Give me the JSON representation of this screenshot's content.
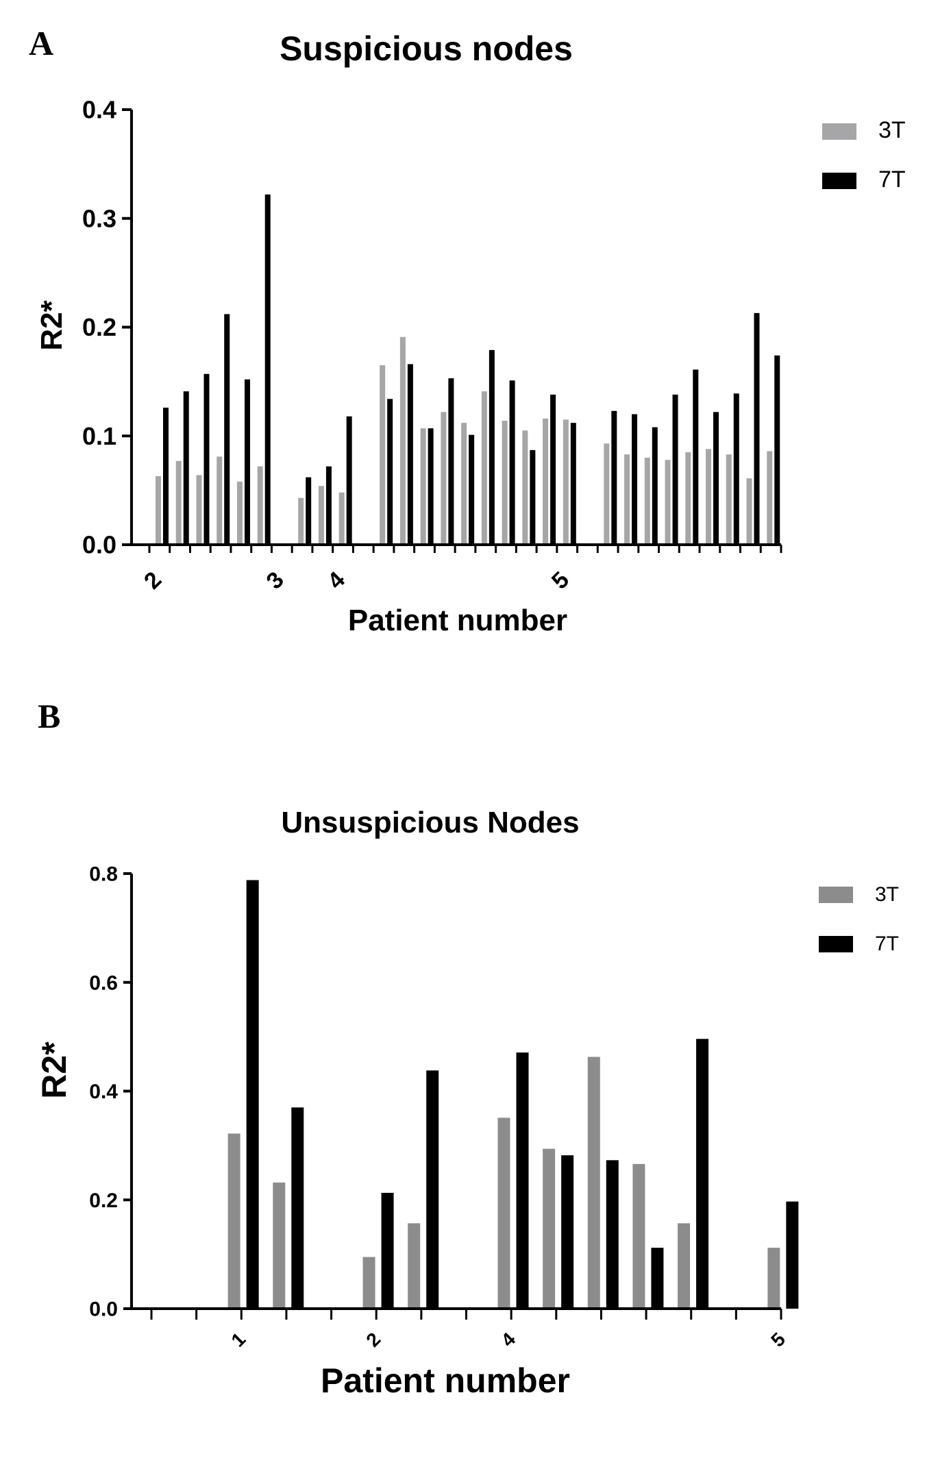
{
  "panels": [
    {
      "letter": "A"
    },
    {
      "letter": "B"
    }
  ],
  "chart_data": [
    {
      "type": "bar",
      "title": "Suspicious nodes",
      "xlabel": "Patient number",
      "ylabel": "R2*",
      "ylim": [
        0,
        0.4
      ],
      "yticks": [
        "0.0",
        "0.1",
        "0.2",
        "0.3",
        "0.4"
      ],
      "legend_position": "top-right",
      "colors": {
        "3T": "#a6a6a8",
        "7T": "#000000"
      },
      "group_labels": [
        {
          "label": "2",
          "at_pair": 0
        },
        {
          "label": "3",
          "at_pair": 6
        },
        {
          "label": "4",
          "at_pair": 9
        },
        {
          "label": "5",
          "at_pair": 20
        }
      ],
      "series": [
        {
          "name": "3T",
          "values": [
            0.063,
            0.077,
            0.064,
            0.081,
            0.058,
            0.072,
            null,
            0.043,
            0.054,
            0.048,
            null,
            0.165,
            0.191,
            0.107,
            0.122,
            0.112,
            0.141,
            0.114,
            0.105,
            0.116,
            0.115,
            null,
            0.093,
            0.083,
            0.08,
            0.078,
            0.085,
            0.088,
            0.083,
            0.061,
            0.086
          ]
        },
        {
          "name": "7T",
          "values": [
            0.126,
            0.141,
            0.157,
            0.212,
            0.152,
            0.322,
            null,
            0.062,
            0.072,
            0.118,
            null,
            0.134,
            0.166,
            0.107,
            0.153,
            0.101,
            0.179,
            0.151,
            0.087,
            0.138,
            0.112,
            null,
            0.123,
            0.12,
            0.108,
            0.138,
            0.161,
            0.122,
            0.139,
            0.213,
            0.174
          ]
        }
      ]
    },
    {
      "type": "bar",
      "title": "Unsuspicious Nodes",
      "xlabel": "Patient number",
      "ylabel": "R2*",
      "ylim": [
        0,
        0.8
      ],
      "yticks": [
        "0.0",
        "0.2",
        "0.4",
        "0.6",
        "0.8"
      ],
      "legend_position": "top-right",
      "colors": {
        "3T": "#8c8c8c",
        "7T": "#000000"
      },
      "group_labels": [
        {
          "label": "1",
          "at_pair": 1
        },
        {
          "label": "2",
          "at_pair": 4
        },
        {
          "label": "4",
          "at_pair": 7
        },
        {
          "label": "5",
          "at_pair": 13
        }
      ],
      "series": [
        {
          "name": "3T",
          "values": [
            null,
            0.322,
            0.232,
            null,
            0.095,
            0.157,
            null,
            0.351,
            0.294,
            0.463,
            0.266,
            0.157,
            null,
            0.112
          ]
        },
        {
          "name": "7T",
          "values": [
            null,
            0.788,
            0.37,
            null,
            0.213,
            0.438,
            null,
            0.471,
            0.282,
            0.273,
            0.112,
            0.496,
            null,
            0.197
          ]
        }
      ]
    }
  ]
}
